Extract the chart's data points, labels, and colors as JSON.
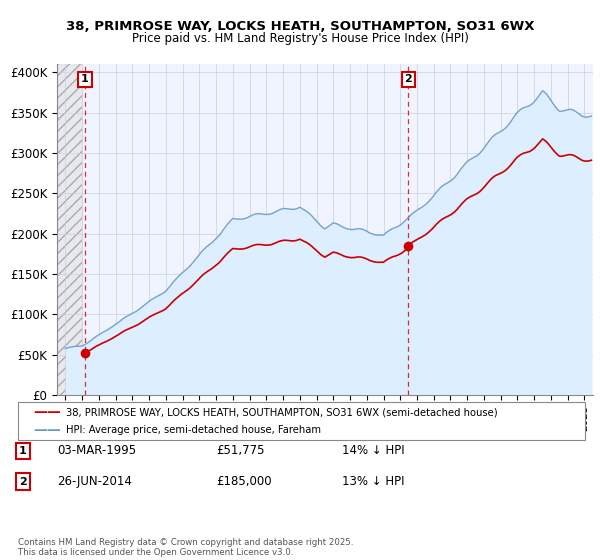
{
  "title_line1": "38, PRIMROSE WAY, LOCKS HEATH, SOUTHAMPTON, SO31 6WX",
  "title_line2": "Price paid vs. HM Land Registry's House Price Index (HPI)",
  "legend_line1": "38, PRIMROSE WAY, LOCKS HEATH, SOUTHAMPTON, SO31 6WX (semi-detached house)",
  "legend_line2": "HPI: Average price, semi-detached house, Fareham",
  "annotation1_label": "1",
  "annotation1_date": "03-MAR-1995",
  "annotation1_price": "£51,775",
  "annotation1_hpi": "14% ↓ HPI",
  "annotation2_label": "2",
  "annotation2_date": "26-JUN-2014",
  "annotation2_price": "£185,000",
  "annotation2_hpi": "13% ↓ HPI",
  "footer": "Contains HM Land Registry data © Crown copyright and database right 2025.\nThis data is licensed under the Open Government Licence v3.0.",
  "property_color": "#cc0000",
  "hpi_color": "#6699cc",
  "hpi_fill_color": "#ddeeff",
  "marker1_x": 1995.17,
  "marker1_y": 51775,
  "marker2_x": 2014.48,
  "marker2_y": 185000,
  "ylim": [
    0,
    410000
  ],
  "xlim": [
    1993.5,
    2025.5
  ]
}
